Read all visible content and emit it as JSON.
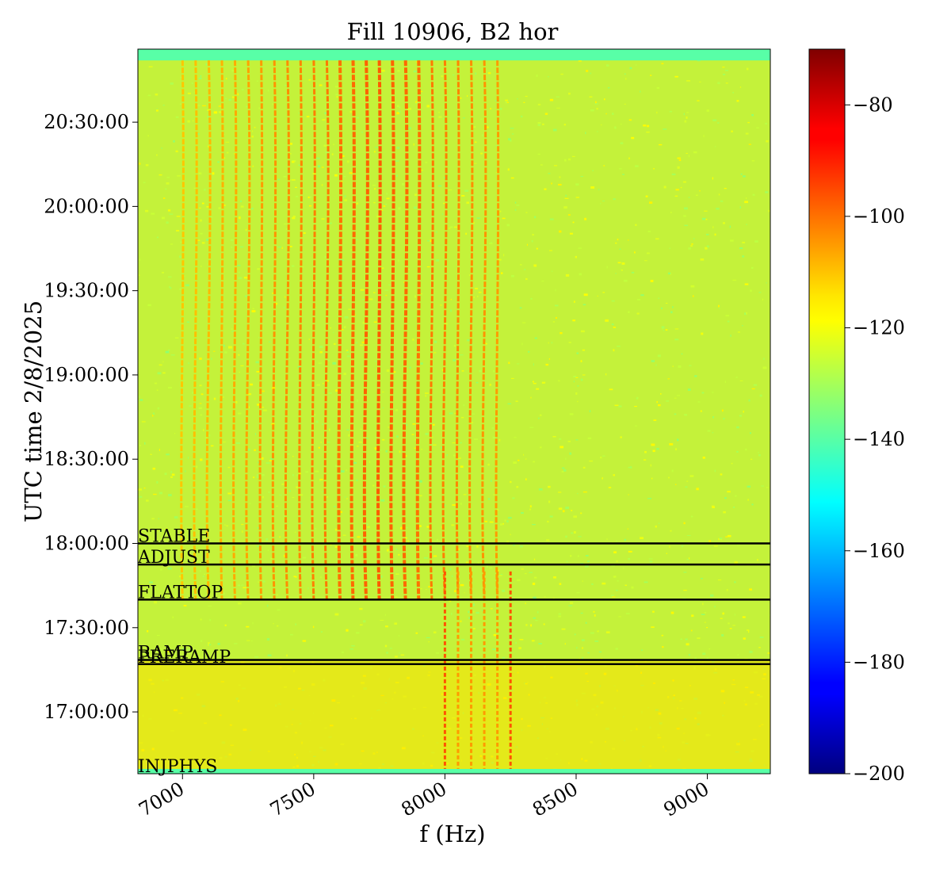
{
  "chart_data": {
    "type": "heatmap",
    "title": "Fill 10906, B2 hor",
    "xlabel": "f (Hz)",
    "ylabel": "UTC time 2/8/2025",
    "xlim": [
      6830,
      9240
    ],
    "ylim_time": [
      "16:38:00",
      "20:56:00"
    ],
    "x_ticks": [
      7000,
      7500,
      8000,
      8500,
      9000
    ],
    "x_tick_labels": [
      "7000",
      "7500",
      "8000",
      "8500",
      "9000"
    ],
    "y_ticks": [
      "17:00:00",
      "17:30:00",
      "18:00:00",
      "18:30:00",
      "19:00:00",
      "19:30:00",
      "20:00:00",
      "20:30:00"
    ],
    "colorbar": {
      "colormap": "jet",
      "range": [
        -200,
        -70
      ],
      "ticks": [
        -200,
        -180,
        -160,
        -140,
        -120,
        -100,
        -80
      ],
      "tick_labels": [
        "−200",
        "−180",
        "−160",
        "−140",
        "−120",
        "−100",
        "−80"
      ]
    },
    "background_level": -125,
    "beam_modes": [
      {
        "label": "STABLE",
        "time": "18:00:00"
      },
      {
        "label": "ADJUST",
        "time": "17:52:30"
      },
      {
        "label": "FLATTOP",
        "time": "17:40:00"
      },
      {
        "label": "RAMP",
        "time": "17:18:30"
      },
      {
        "label": "PRERAMP",
        "time": "17:17:00"
      },
      {
        "label": "INJPHYS",
        "time": "16:38:00"
      }
    ],
    "tune_lines_after_flattop_hz": [
      7000,
      7050,
      7100,
      7150,
      7200,
      7250,
      7300,
      7350,
      7400,
      7450,
      7500,
      7550,
      7600,
      7650,
      7700,
      7750,
      7800,
      7850,
      7900,
      7950,
      8000,
      8050,
      8100,
      8150,
      8200
    ],
    "tune_lines_during_ramp_hz": [
      8000,
      8050,
      8100,
      8150,
      8200,
      8250
    ]
  }
}
